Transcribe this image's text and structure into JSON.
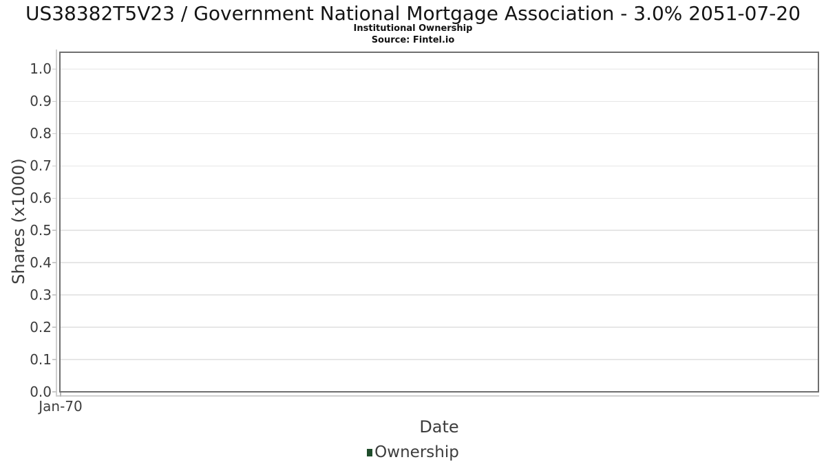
{
  "header": {
    "title": "US38382T5V23 / Government National Mortgage Association - 3.0% 2051-07-20",
    "subtitle": "Institutional Ownership",
    "source": "Source: Fintel.io"
  },
  "legend": {
    "position": "bottom",
    "items": [
      {
        "label": "Ownership",
        "color": "#1f4d2b"
      }
    ]
  },
  "chart_data": {
    "type": "line",
    "title": "US38382T5V23 / Government National Mortgage Association - 3.0% 2051-07-20",
    "subtitle": "Institutional Ownership",
    "source": "Source: Fintel.io",
    "xlabel": "Date",
    "ylabel": "Shares (x1000)",
    "ylim": [
      0,
      1.052
    ],
    "y_ticks": [
      0.0,
      0.1,
      0.2,
      0.3,
      0.4,
      0.5,
      0.6,
      0.7,
      0.8,
      0.9,
      1.0
    ],
    "y_tick_labels": [
      "0.0",
      "0.1",
      "0.2",
      "0.3",
      "0.4",
      "0.5",
      "0.6",
      "0.7",
      "0.8",
      "0.9",
      "1.0"
    ],
    "x_ticks": [
      {
        "label": "Jan-70",
        "fraction": 0
      }
    ],
    "grid": true,
    "legend_position": "bottom",
    "series": [
      {
        "name": "Ownership",
        "color": "#1f4d2b",
        "x": [],
        "values": []
      }
    ],
    "colors": {
      "plot_border": "#6e6e6e",
      "gridline": "#e6e6e6",
      "axis_line": "#cfcfcf",
      "tick_text": "#3d3d3d",
      "label_text": "#3d3d3d",
      "title_text": "#141414"
    }
  }
}
